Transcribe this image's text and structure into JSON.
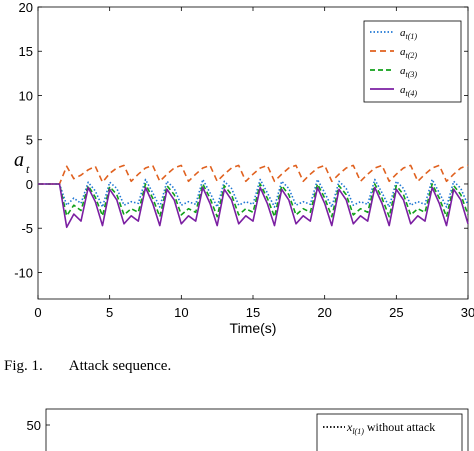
{
  "caption": {
    "label": "Fig. 1.",
    "text": "Attack sequence."
  },
  "chart_data": [
    {
      "type": "line",
      "ylabel": "a_t",
      "xlabel": "Time(s)",
      "xlim": [
        0,
        30
      ],
      "ylim": [
        -13,
        20
      ],
      "xticks": [
        0,
        5,
        10,
        15,
        20,
        25,
        30
      ],
      "xtick_labels": [
        "0",
        "5",
        "10",
        "15",
        "20",
        "25",
        "30"
      ],
      "yticks": [
        20,
        15,
        10,
        5,
        0,
        -5,
        -10
      ],
      "grid": false,
      "legend_position": "top-right",
      "series": [
        {
          "name": "a_{t(1)}",
          "legend_base": "a",
          "legend_sub": "t(1)",
          "color": "#1f77d4",
          "dash": "1.5,2",
          "x": [
            0,
            1.5,
            2,
            2.5,
            3,
            3.5,
            4,
            4.5,
            5,
            5.5,
            6,
            6.5,
            7,
            7.5,
            8,
            8.5,
            9,
            9.5,
            10,
            10.5,
            11,
            11.5,
            12,
            12.5,
            13,
            13.5,
            14,
            14.5,
            15,
            15.5,
            16,
            16.5,
            17,
            17.5,
            18,
            18.5,
            19,
            19.5,
            20,
            20.5,
            21,
            21.5,
            22,
            22.5,
            23,
            23.5,
            24,
            24.5,
            25,
            25.5,
            26,
            26.5,
            27,
            27.5,
            28,
            28.5,
            29,
            29.5,
            30
          ],
          "y": [
            0,
            0,
            -2.4,
            -1.6,
            -2.2,
            0.2,
            -0.8,
            -2.6,
            0.2,
            -0.5,
            -2.4,
            -2.0,
            -2.2,
            0.5,
            -1.0,
            -2.6,
            0.3,
            -0.5,
            -2.4,
            -2.0,
            -2.3,
            0.5,
            -1.0,
            -2.6,
            0.3,
            -0.5,
            -2.4,
            -2.0,
            -2.3,
            0.5,
            -1.0,
            -2.6,
            0.3,
            -0.5,
            -2.4,
            -2.0,
            -2.3,
            0.5,
            -1.0,
            -2.6,
            0.3,
            -0.5,
            -2.4,
            -2.0,
            -2.3,
            0.5,
            -1.0,
            -2.6,
            0.3,
            -0.5,
            -2.4,
            -2.0,
            -2.3,
            0.5,
            -1.0,
            -2.6,
            0.3,
            -0.5,
            -2.4
          ]
        },
        {
          "name": "a_{t(2)}",
          "legend_base": "a",
          "legend_sub": "t(2)",
          "color": "#e0611f",
          "dash": "6,4",
          "x": [
            0,
            1.5,
            2,
            2.5,
            3,
            3.5,
            4,
            4.5,
            5,
            5.5,
            6,
            6.5,
            7,
            7.5,
            8,
            8.5,
            9,
            9.5,
            10,
            10.5,
            11,
            11.5,
            12,
            12.5,
            13,
            13.5,
            14,
            14.5,
            15,
            15.5,
            16,
            16.5,
            17,
            17.5,
            18,
            18.5,
            19,
            19.5,
            20,
            20.5,
            21,
            21.5,
            22,
            22.5,
            23,
            23.5,
            24,
            24.5,
            25,
            25.5,
            26,
            26.5,
            27,
            27.5,
            28,
            28.5,
            29,
            29.5,
            30
          ],
          "y": [
            0,
            0,
            2.0,
            0.6,
            1.0,
            1.6,
            2.0,
            0.2,
            1.2,
            1.8,
            2.1,
            0.3,
            1.1,
            1.8,
            2.1,
            0.3,
            1.1,
            1.8,
            2.1,
            0.3,
            1.1,
            1.8,
            2.1,
            0.3,
            1.1,
            1.8,
            2.1,
            0.3,
            1.1,
            1.8,
            2.1,
            0.3,
            1.1,
            1.8,
            2.1,
            0.3,
            1.1,
            1.8,
            2.1,
            0.3,
            1.1,
            1.8,
            2.1,
            0.3,
            1.1,
            1.8,
            2.1,
            0.3,
            1.1,
            1.8,
            2.1,
            0.3,
            1.1,
            1.8,
            2.1,
            0.3,
            1.1,
            1.8,
            2.1
          ]
        },
        {
          "name": "a_{t(3)}",
          "legend_base": "a",
          "legend_sub": "t(3)",
          "color": "#11a01a",
          "dash": "5,3",
          "x": [
            0,
            1.5,
            2,
            2.5,
            3,
            3.5,
            4,
            4.5,
            5,
            5.5,
            6,
            6.5,
            7,
            7.5,
            8,
            8.5,
            9,
            9.5,
            10,
            10.5,
            11,
            11.5,
            12,
            12.5,
            13,
            13.5,
            14,
            14.5,
            15,
            15.5,
            16,
            16.5,
            17,
            17.5,
            18,
            18.5,
            19,
            19.5,
            20,
            20.5,
            21,
            21.5,
            22,
            22.5,
            23,
            23.5,
            24,
            24.5,
            25,
            25.5,
            26,
            26.5,
            27,
            27.5,
            28,
            28.5,
            29,
            29.5,
            30
          ],
          "y": [
            0,
            0,
            -3.6,
            -2.4,
            -3.0,
            -0.2,
            -1.5,
            -3.6,
            -0.3,
            -1.2,
            -3.5,
            -2.8,
            -3.2,
            0.0,
            -1.6,
            -3.7,
            -0.2,
            -1.2,
            -3.5,
            -2.8,
            -3.2,
            0.0,
            -1.6,
            -3.7,
            -0.2,
            -1.2,
            -3.5,
            -2.8,
            -3.2,
            0.0,
            -1.6,
            -3.7,
            -0.2,
            -1.2,
            -3.5,
            -2.8,
            -3.2,
            0.0,
            -1.6,
            -3.7,
            -0.2,
            -1.2,
            -3.5,
            -2.8,
            -3.2,
            0.0,
            -1.6,
            -3.7,
            -0.2,
            -1.2,
            -3.5,
            -2.8,
            -3.2,
            0.0,
            -1.6,
            -3.7,
            -0.2,
            -1.2,
            -3.5
          ]
        },
        {
          "name": "a_{t(4)}",
          "legend_base": "a",
          "legend_sub": "t(4)",
          "color": "#7b1fa2",
          "dash": "",
          "x": [
            0,
            1.5,
            2,
            2.5,
            3,
            3.5,
            4,
            4.5,
            5,
            5.5,
            6,
            6.5,
            7,
            7.5,
            8,
            8.5,
            9,
            9.5,
            10,
            10.5,
            11,
            11.5,
            12,
            12.5,
            13,
            13.5,
            14,
            14.5,
            15,
            15.5,
            16,
            16.5,
            17,
            17.5,
            18,
            18.5,
            19,
            19.5,
            20,
            20.5,
            21,
            21.5,
            22,
            22.5,
            23,
            23.5,
            24,
            24.5,
            25,
            25.5,
            26,
            26.5,
            27,
            27.5,
            28,
            28.5,
            29,
            29.5,
            30
          ],
          "y": [
            0,
            0,
            -4.9,
            -3.4,
            -4.2,
            -0.4,
            -2.0,
            -4.7,
            -0.6,
            -1.8,
            -4.5,
            -3.6,
            -4.2,
            -0.4,
            -2.2,
            -4.7,
            -0.6,
            -1.8,
            -4.5,
            -3.6,
            -4.2,
            -0.4,
            -2.2,
            -4.7,
            -0.6,
            -1.8,
            -4.5,
            -3.6,
            -4.2,
            -0.4,
            -2.2,
            -4.7,
            -0.6,
            -1.8,
            -4.5,
            -3.6,
            -4.2,
            -0.4,
            -2.2,
            -4.7,
            -0.6,
            -1.8,
            -4.5,
            -3.6,
            -4.2,
            -0.4,
            -2.2,
            -4.7,
            -0.6,
            -1.8,
            -4.5,
            -3.6,
            -4.2,
            -0.4,
            -2.2,
            -4.7,
            -0.6,
            -1.8,
            -4.5
          ]
        }
      ]
    },
    {
      "type": "line",
      "partial": true,
      "yticks_visible": [
        "50"
      ],
      "legend_entries": [
        {
          "name": "x_{l(1)} without attack",
          "legend_base": "x",
          "legend_sub": "l(1)",
          "suffix": "without attack"
        }
      ]
    }
  ]
}
